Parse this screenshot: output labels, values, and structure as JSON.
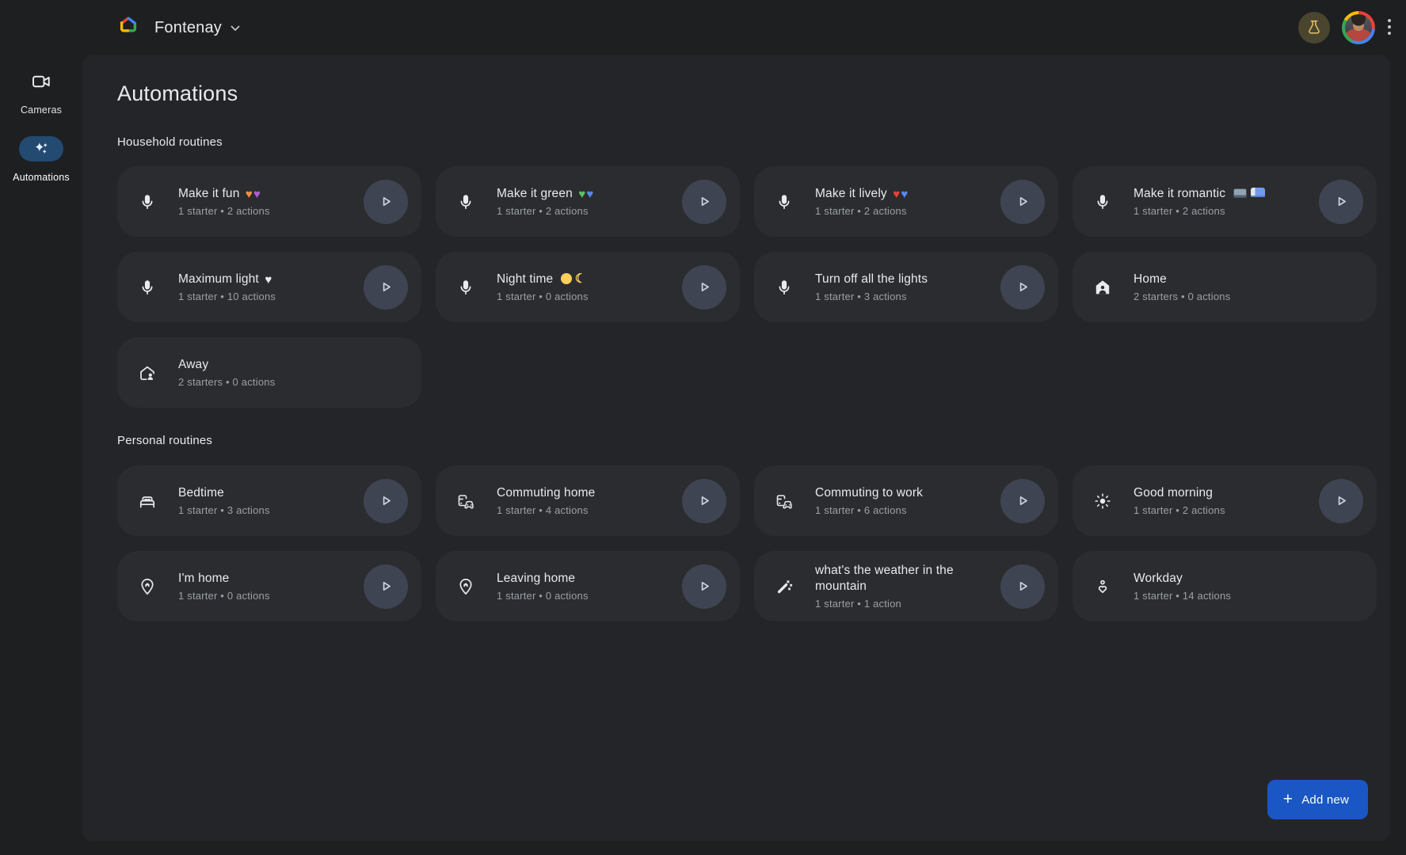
{
  "colors": {
    "accent_blue": "#1a56c4",
    "selected_pill_blue": "#234a70",
    "panel_bg": "#242528",
    "card_bg": "#2b2c2f"
  },
  "header": {
    "home_name": "Fontenay",
    "icons": [
      "google-home-logo",
      "chevron-down-icon",
      "flask-icon",
      "avatar",
      "more-menu-icon"
    ]
  },
  "sidebar": {
    "items": [
      {
        "label": "Cameras",
        "icon": "camera-icon",
        "active": false
      },
      {
        "label": "Automations",
        "icon": "sparkles-icon",
        "active": true
      }
    ]
  },
  "main": {
    "title": "Automations",
    "add_new_label": "Add new",
    "sections": [
      {
        "title": "Household routines",
        "cards": [
          {
            "title": "Make it fun 🧡💜",
            "subtitle": "1 starter • 2 actions",
            "icon": "mic-icon",
            "runnable": true
          },
          {
            "title": "Make it green 💚💙",
            "subtitle": "1 starter • 2 actions",
            "icon": "mic-icon",
            "runnable": true
          },
          {
            "title": "Make it lively ❤️💙",
            "subtitle": "1 starter • 2 actions",
            "icon": "mic-icon",
            "runnable": true
          },
          {
            "title": "Make it romantic 📺🛏️",
            "subtitle": "1 starter • 2 actions",
            "icon": "mic-icon",
            "runnable": true
          },
          {
            "title": "Maximum light 🤍",
            "subtitle": "1 starter • 10 actions",
            "icon": "mic-icon",
            "runnable": true
          },
          {
            "title": "Night time 😴🌛",
            "subtitle": "1 starter • 0 actions",
            "icon": "mic-icon",
            "runnable": true
          },
          {
            "title": "Turn off all the lights",
            "subtitle": "1 starter • 3 actions",
            "icon": "mic-icon",
            "runnable": true
          },
          {
            "title": "Home",
            "subtitle": "2 starters • 0 actions",
            "icon": "home-person-icon",
            "runnable": false
          },
          {
            "title": "Away",
            "subtitle": "2 starters • 0 actions",
            "icon": "home-away-icon",
            "runnable": false
          }
        ]
      },
      {
        "title": "Personal routines",
        "cards": [
          {
            "title": "Bedtime",
            "subtitle": "1 starter • 3 actions",
            "icon": "bed-icon",
            "runnable": true
          },
          {
            "title": "Commuting home",
            "subtitle": "1 starter • 4 actions",
            "icon": "commute-icon",
            "runnable": true
          },
          {
            "title": "Commuting to work",
            "subtitle": "1 starter • 6 actions",
            "icon": "commute-icon",
            "runnable": true
          },
          {
            "title": "Good morning",
            "subtitle": "1 starter • 2 actions",
            "icon": "sun-icon",
            "runnable": true
          },
          {
            "title": "I'm home",
            "subtitle": "1 starter • 0 actions",
            "icon": "pin-home-icon",
            "runnable": true
          },
          {
            "title": "Leaving home",
            "subtitle": "1 starter • 0 actions",
            "icon": "pin-home-icon",
            "runnable": true
          },
          {
            "title": "what's the weather in the mountain",
            "subtitle": "1 starter • 1 action",
            "icon": "wand-icon",
            "runnable": true
          },
          {
            "title": "Workday",
            "subtitle": "1 starter • 14 actions",
            "icon": "workday-badge-icon",
            "runnable": false
          }
        ]
      }
    ]
  }
}
